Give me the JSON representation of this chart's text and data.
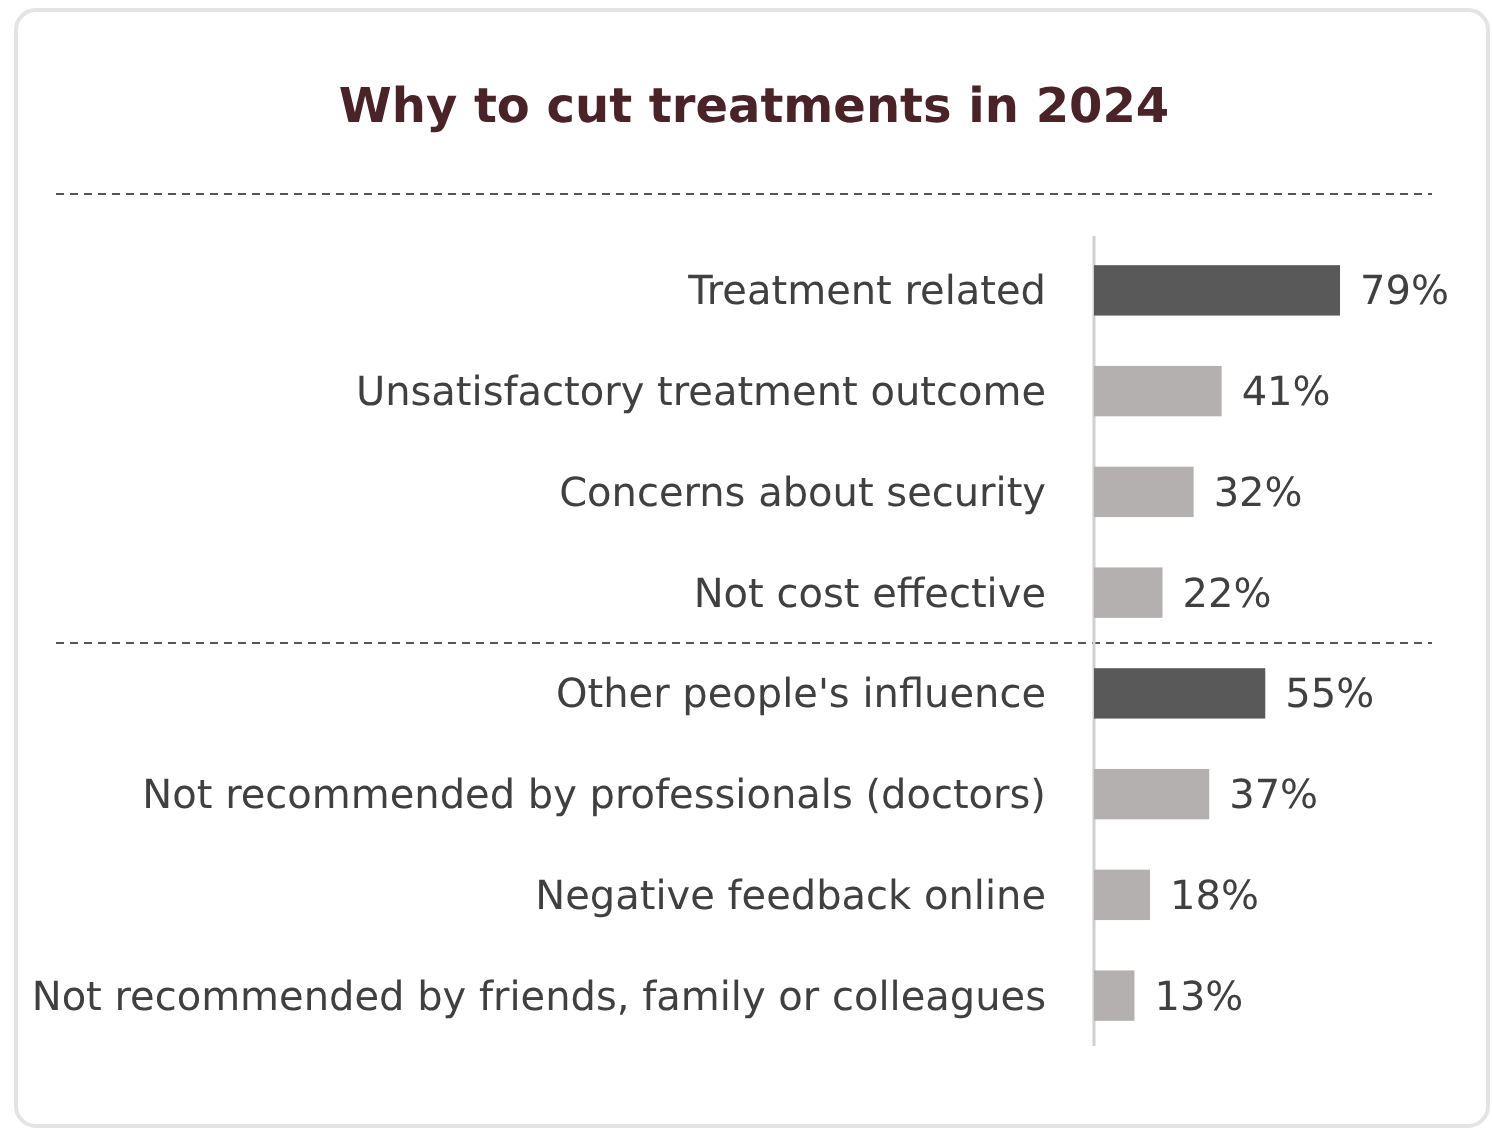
{
  "chart_data": {
    "type": "bar",
    "orientation": "horizontal",
    "title": "Why to cut treatments in 2024",
    "categories": [
      "Treatment related",
      "Unsatisfactory treatment outcome",
      "Concerns about security",
      "Not cost effective",
      "Other people's influence",
      "Not recommended by professionals (doctors)",
      "Negative feedback online",
      "Not recommended by friends, family or colleagues"
    ],
    "values": [
      79,
      41,
      32,
      22,
      55,
      37,
      18,
      13
    ],
    "colors": [
      "#595959",
      "#b4b0b0",
      "#b4b0b0",
      "#b4b0b0",
      "#595959",
      "#b4b0b0",
      "#b4b0b0",
      "#b4b0b0"
    ],
    "value_labels": [
      "79%",
      "41%",
      "32%",
      "22%",
      "55%",
      "37%",
      "18%",
      "13%"
    ]
  }
}
